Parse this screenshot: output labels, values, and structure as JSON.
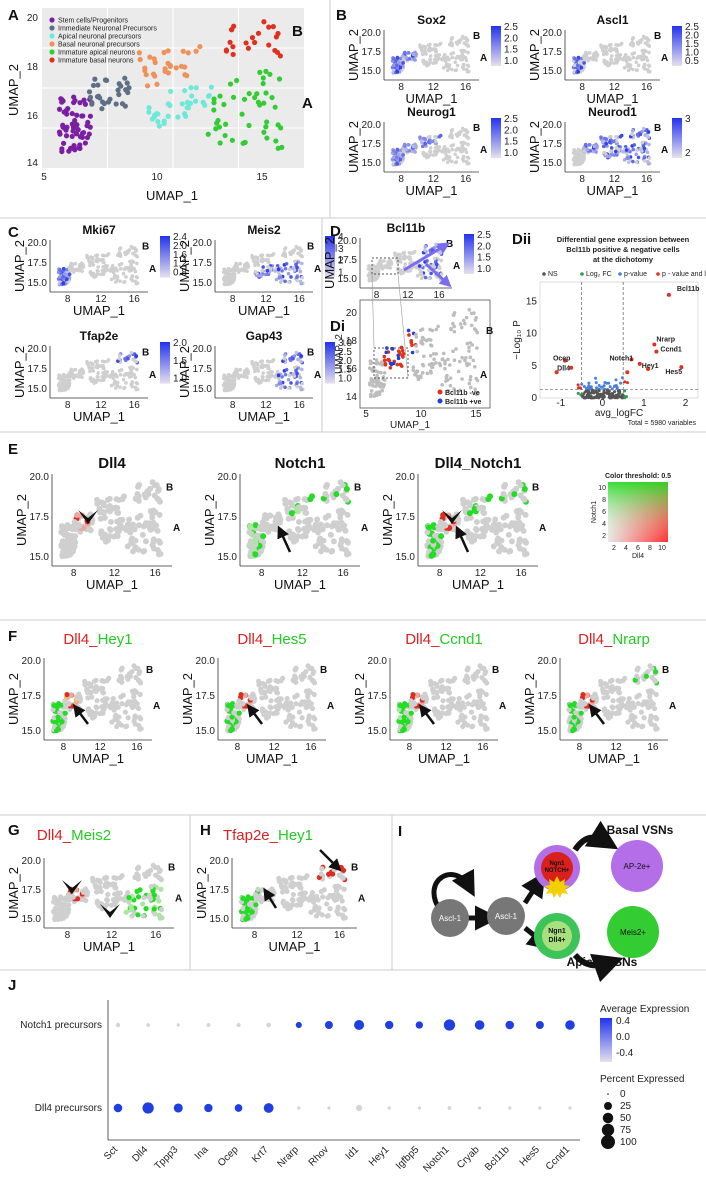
{
  "panelA": {
    "label": "A",
    "xlabel": "UMAP_1",
    "ylabel": "UMAP_2",
    "xticks": [
      "5",
      "10",
      "15"
    ],
    "yticks": [
      "14",
      "16",
      "18",
      "20"
    ],
    "branchB": "B",
    "branchA": "A",
    "legend": [
      {
        "name": "Stem cells/Progenitors",
        "color": "#7b1fa2"
      },
      {
        "name": "Immediate Neuronal Precursors",
        "color": "#5f6f86"
      },
      {
        "name": "Apical neuronal precursors",
        "color": "#6ee8d8"
      },
      {
        "name": "Basal neuronal precursors",
        "color": "#f0905a"
      },
      {
        "name": "Immature apical neurons",
        "color": "#33cc33"
      },
      {
        "name": "Immature basal neurons",
        "color": "#e0301e"
      }
    ]
  },
  "featureLabels": {
    "B": "B",
    "C": "C",
    "D": "D",
    "Di": "Di",
    "Dii": "Dii",
    "E": "E",
    "F": "F",
    "G": "G",
    "H": "H",
    "I": "I",
    "J": "J"
  },
  "axes": {
    "x": "UMAP_1",
    "y": "UMAP_2",
    "xticks": [
      "8",
      "12",
      "16"
    ],
    "yticks": [
      "15.0",
      "17.5",
      "20.0"
    ],
    "ab": "A",
    "bb": "B"
  },
  "panelB": {
    "plots": [
      {
        "title": "Sox2",
        "legend": [
          "2.5",
          "2.0",
          "1.5",
          "1.0"
        ]
      },
      {
        "title": "Ascl1",
        "legend": [
          "2.5",
          "2.0",
          "1.5",
          "1.0",
          "0.5"
        ]
      },
      {
        "title": "Neurog1",
        "legend": [
          "2.5",
          "2.0",
          "1.5",
          "1.0"
        ]
      },
      {
        "title": "Neurod1",
        "legend": [
          "3",
          "2"
        ]
      }
    ]
  },
  "panelC": {
    "plots": [
      {
        "title": "Mki67",
        "legend": [
          "2.4",
          "2.0",
          "1.6",
          "1.2",
          "0.8"
        ]
      },
      {
        "title": "Meis2",
        "legend": [
          "4",
          "3",
          "2",
          "1"
        ]
      },
      {
        "title": "Tfap2e",
        "legend": [
          "2.0",
          "1.5",
          "1.0"
        ]
      },
      {
        "title": "Gap43",
        "legend": [
          "3.0",
          "2.5",
          "2.0",
          "1.5",
          "1.0"
        ]
      }
    ]
  },
  "panelD": {
    "title": "Bcl11b",
    "legend": [
      "2.5",
      "2.0",
      "1.5",
      "1.0"
    ],
    "diXticks": [
      "5",
      "10",
      "15"
    ],
    "diYticks": [
      "14",
      "16",
      "18",
      "20"
    ],
    "diLegend": [
      {
        "name": "Bcl11b -ve",
        "color": "#e0301e"
      },
      {
        "name": "Bcl11b +ve",
        "color": "#1f3fd6"
      }
    ]
  },
  "panelDii": {
    "title1": "Differential gene expression between",
    "title2": "Bcl11b positive & negative cells",
    "title3": "at the dichotomy",
    "legend": [
      "NS",
      "Log₂ FC",
      "p-value",
      "p - value and log₂ FC"
    ],
    "xlabel": "avg_logFC",
    "ylabel": "−Log₁₀ P",
    "xticks": [
      "-1",
      "0",
      "1",
      "2"
    ],
    "yticks": [
      "0",
      "5",
      "10",
      "15"
    ],
    "genes": [
      "Bcl11b",
      "Nrarp",
      "Ccnd1",
      "Notch1",
      "Hey1",
      "Hes5",
      "Ocep",
      "Dll4"
    ],
    "total": "Total = 5980 variables"
  },
  "panelE": {
    "plots": [
      {
        "title": "Dll4"
      },
      {
        "title": "Notch1"
      },
      {
        "title": "Dll4_Notch1"
      }
    ],
    "blend": {
      "title": "Color threshold: 0.5",
      "xlabel": "Dll4",
      "ylabel": "Notch1",
      "xticks": [
        "2",
        "4",
        "6",
        "8",
        "10"
      ],
      "yticks": [
        "2",
        "4",
        "6",
        "8",
        "10"
      ]
    }
  },
  "panelF": {
    "plots": [
      {
        "red": "Dll4",
        "sep": "_",
        "green": "Hey1"
      },
      {
        "red": "Dll4",
        "sep": "_",
        "green": "Hes5"
      },
      {
        "red": "Dll4",
        "sep": "_",
        "green": "Ccnd1"
      },
      {
        "red": "Dll4",
        "sep": "_",
        "green": "Nrarp"
      }
    ]
  },
  "panelG": {
    "red": "Dll4",
    "sep": "_",
    "green": "Meis2"
  },
  "panelH": {
    "red": "Tfap2e",
    "sep": "_",
    "green": "Hey1"
  },
  "panelI": {
    "nodes": {
      "ascl1a": "Ascl-1",
      "ascl1b": "Ascl-1",
      "ngnNotch1": "Ngn1",
      "ngnNotch2": "NOTCH+",
      "ngnDll1": "Ngn1",
      "ngnDll2": "Dll4+",
      "ap2e": "AP-2e+",
      "meis2": "Meis2+"
    },
    "basal": "Basal VSNs",
    "apical": "Apical VSNs"
  },
  "chart_data": {
    "type": "dotplot",
    "title": "",
    "rows": [
      "Notch1 precursors",
      "Dll4 precursors"
    ],
    "genes": [
      "Sct",
      "Dll4",
      "Tppp3",
      "Ina",
      "Ocep",
      "Krt7",
      "Nrarp",
      "Rhov",
      "Id1",
      "Hey1",
      "Igfbp5",
      "Notch1",
      "Cryab",
      "Bcl11b",
      "Hes5",
      "Ccnd1"
    ],
    "percent": [
      [
        4,
        2,
        1,
        2,
        3,
        5,
        12,
        25,
        45,
        28,
        20,
        60,
        40,
        30,
        25,
        40
      ],
      [
        30,
        60,
        35,
        28,
        22,
        42,
        1,
        1,
        12,
        1,
        1,
        2,
        1,
        1,
        1,
        1
      ]
    ],
    "avg_expression": [
      [
        -0.5,
        -0.6,
        -0.6,
        -0.6,
        -0.6,
        -0.5,
        0.5,
        0.5,
        0.5,
        0.5,
        0.5,
        0.5,
        0.5,
        0.5,
        0.5,
        0.5
      ],
      [
        0.5,
        0.5,
        0.5,
        0.5,
        0.5,
        0.5,
        -0.6,
        -0.6,
        -0.5,
        -0.6,
        -0.6,
        -0.5,
        -0.6,
        -0.6,
        -0.6,
        -0.6
      ]
    ],
    "colorLegendTitle": "Average Expression",
    "colorTicks": [
      "0.4",
      "0.0",
      "-0.4"
    ],
    "sizeLegendTitle": "Percent Expressed",
    "sizeTicks": [
      "0",
      "25",
      "50",
      "75",
      "100"
    ]
  }
}
